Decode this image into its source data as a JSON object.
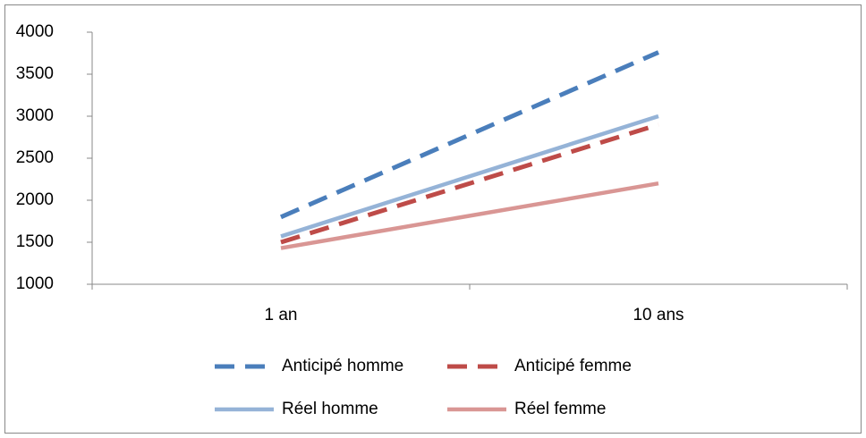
{
  "chart_data": {
    "type": "line",
    "categories": [
      "1 an",
      "10 ans"
    ],
    "series": [
      {
        "name": "Anticipé homme",
        "color": "#4a7ebb",
        "dashed": true,
        "values": [
          1800,
          3760
        ]
      },
      {
        "name": "Anticipé femme",
        "color": "#be4b48",
        "dashed": true,
        "values": [
          1500,
          2900
        ]
      },
      {
        "name": "Réel homme",
        "color": "#95b3d7",
        "dashed": false,
        "values": [
          1570,
          3000
        ]
      },
      {
        "name": "Réel femme",
        "color": "#d99694",
        "dashed": false,
        "values": [
          1430,
          2200
        ]
      }
    ],
    "ylim": [
      1000,
      4000
    ],
    "yticks": [
      1000,
      1500,
      2000,
      2500,
      3000,
      3500,
      4000
    ],
    "grid": false,
    "legend": "bottom"
  }
}
